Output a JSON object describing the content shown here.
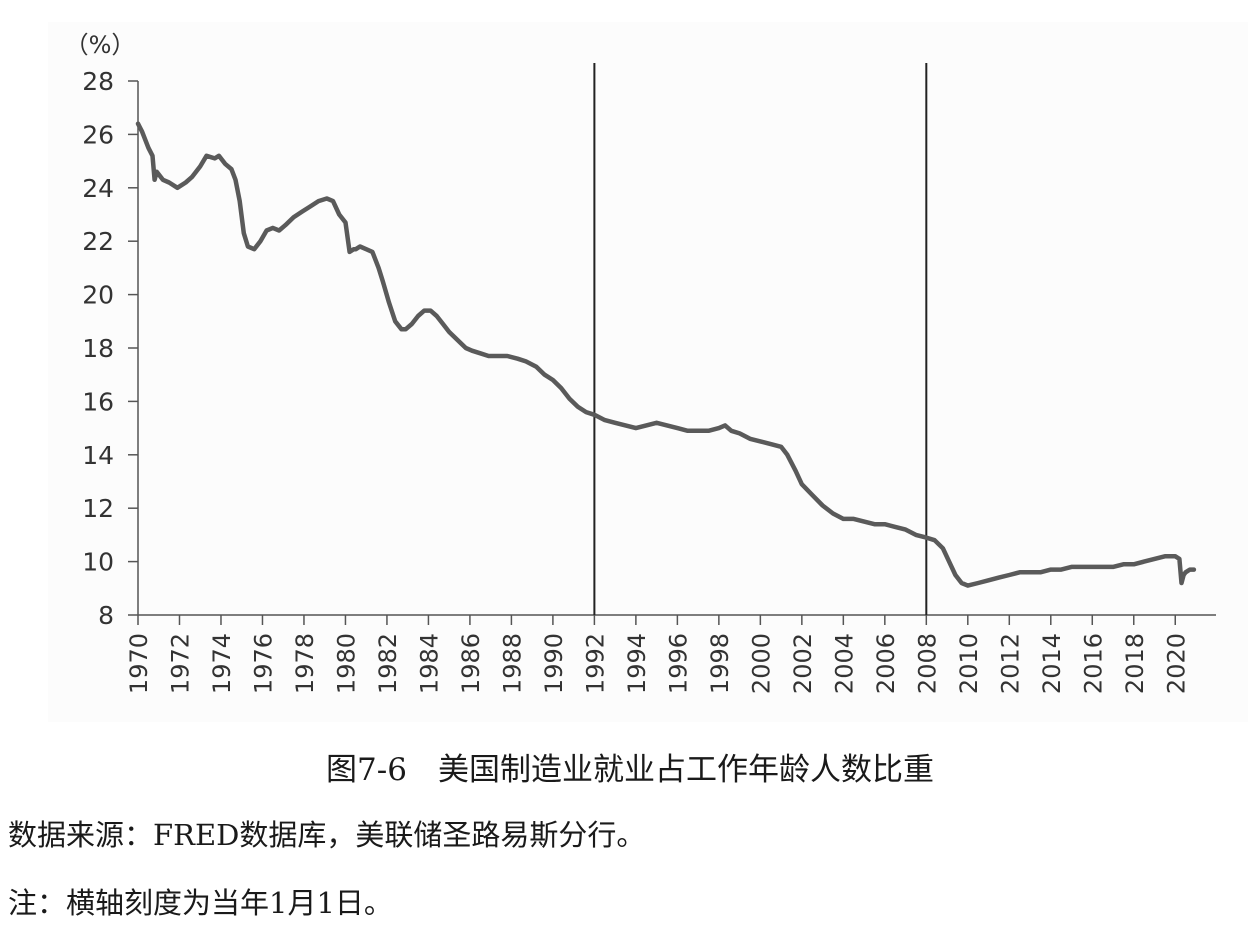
{
  "chart_data": {
    "type": "line",
    "title": "",
    "ylabel": "（%）",
    "xlabel": "",
    "ylim": [
      8,
      28
    ],
    "yticks": [
      8,
      10,
      12,
      14,
      16,
      18,
      20,
      22,
      24,
      26,
      28
    ],
    "xlim": [
      1970,
      2021
    ],
    "xticks": [
      "1970",
      "1972",
      "1974",
      "1976",
      "1978",
      "1980",
      "1982",
      "1984",
      "1986",
      "1988",
      "1990",
      "1992",
      "1994",
      "1996",
      "1998",
      "2000",
      "2002",
      "2004",
      "2006",
      "2008",
      "2010",
      "2012",
      "2014",
      "2016",
      "2018",
      "2020"
    ],
    "vertical_lines": [
      1992,
      2008
    ],
    "grid": false,
    "line_color": "#5a5a5a",
    "series": [
      {
        "x": [
          1970.0,
          1970.2,
          1970.5,
          1970.7,
          1970.8,
          1970.9,
          1971.2,
          1971.5,
          1971.9,
          1972.3,
          1972.6,
          1973.0,
          1973.3,
          1973.7,
          1973.9,
          1974.2,
          1974.5,
          1974.7,
          1974.9,
          1975.1,
          1975.3,
          1975.6,
          1975.9,
          1976.2,
          1976.5,
          1976.8,
          1977.1,
          1977.5,
          1977.9,
          1978.3,
          1978.7,
          1979.1,
          1979.4,
          1979.7,
          1980.0,
          1980.2,
          1980.4,
          1980.5,
          1980.7,
          1981.0,
          1981.3,
          1981.6,
          1981.8,
          1982.1,
          1982.4,
          1982.7,
          1982.9,
          1983.2,
          1983.5,
          1983.8,
          1984.1,
          1984.4,
          1984.7,
          1985.0,
          1985.4,
          1985.8,
          1986.1,
          1986.5,
          1986.9,
          1987.3,
          1987.8,
          1988.3,
          1988.7,
          1989.2,
          1989.6,
          1990.0,
          1990.4,
          1990.8,
          1991.2,
          1991.6,
          1992.0,
          1992.5,
          1993.0,
          1993.5,
          1994.0,
          1994.5,
          1995.0,
          1995.5,
          1996.0,
          1996.5,
          1997.0,
          1997.5,
          1998.0,
          1998.3,
          1998.6,
          1999.0,
          1999.5,
          2000.0,
          2000.5,
          2001.0,
          2001.3,
          2001.7,
          2002.0,
          2002.5,
          2003.0,
          2003.5,
          2004.0,
          2004.5,
          2005.0,
          2005.5,
          2006.0,
          2006.5,
          2007.0,
          2007.5,
          2008.0,
          2008.4,
          2008.8,
          2009.1,
          2009.4,
          2009.7,
          2010.0,
          2010.5,
          2011.0,
          2011.5,
          2012.0,
          2012.5,
          2013.0,
          2013.5,
          2014.0,
          2014.5,
          2015.0,
          2015.5,
          2016.0,
          2016.5,
          2017.0,
          2017.5,
          2018.0,
          2018.5,
          2019.0,
          2019.5,
          2020.0,
          2020.2,
          2020.3,
          2020.4,
          2020.5,
          2020.7,
          2020.9
        ],
        "values": [
          26.4,
          26.1,
          25.5,
          25.2,
          24.3,
          24.6,
          24.3,
          24.2,
          24.0,
          24.2,
          24.4,
          24.8,
          25.2,
          25.1,
          25.2,
          24.9,
          24.7,
          24.3,
          23.5,
          22.3,
          21.8,
          21.7,
          22.0,
          22.4,
          22.5,
          22.4,
          22.6,
          22.9,
          23.1,
          23.3,
          23.5,
          23.6,
          23.5,
          23.0,
          22.7,
          21.6,
          21.7,
          21.7,
          21.8,
          21.7,
          21.6,
          21.0,
          20.5,
          19.7,
          19.0,
          18.7,
          18.7,
          18.9,
          19.2,
          19.4,
          19.4,
          19.2,
          18.9,
          18.6,
          18.3,
          18.0,
          17.9,
          17.8,
          17.7,
          17.7,
          17.7,
          17.6,
          17.5,
          17.3,
          17.0,
          16.8,
          16.5,
          16.1,
          15.8,
          15.6,
          15.5,
          15.3,
          15.2,
          15.1,
          15.0,
          15.1,
          15.2,
          15.1,
          15.0,
          14.9,
          14.9,
          14.9,
          15.0,
          15.1,
          14.9,
          14.8,
          14.6,
          14.5,
          14.4,
          14.3,
          14.0,
          13.4,
          12.9,
          12.5,
          12.1,
          11.8,
          11.6,
          11.6,
          11.5,
          11.4,
          11.4,
          11.3,
          11.2,
          11.0,
          10.9,
          10.8,
          10.5,
          10.0,
          9.5,
          9.2,
          9.1,
          9.2,
          9.3,
          9.4,
          9.5,
          9.6,
          9.6,
          9.6,
          9.7,
          9.7,
          9.8,
          9.8,
          9.8,
          9.8,
          9.8,
          9.9,
          9.9,
          10.0,
          10.1,
          10.2,
          10.2,
          10.1,
          9.2,
          9.5,
          9.6,
          9.7,
          9.7
        ]
      }
    ]
  },
  "captions": {
    "title": "图7-6　美国制造业就业占工作年龄人数比重",
    "source": "数据来源：FRED数据库，美联储圣路易斯分行。",
    "note": "注：横轴刻度为当年1月1日。"
  }
}
